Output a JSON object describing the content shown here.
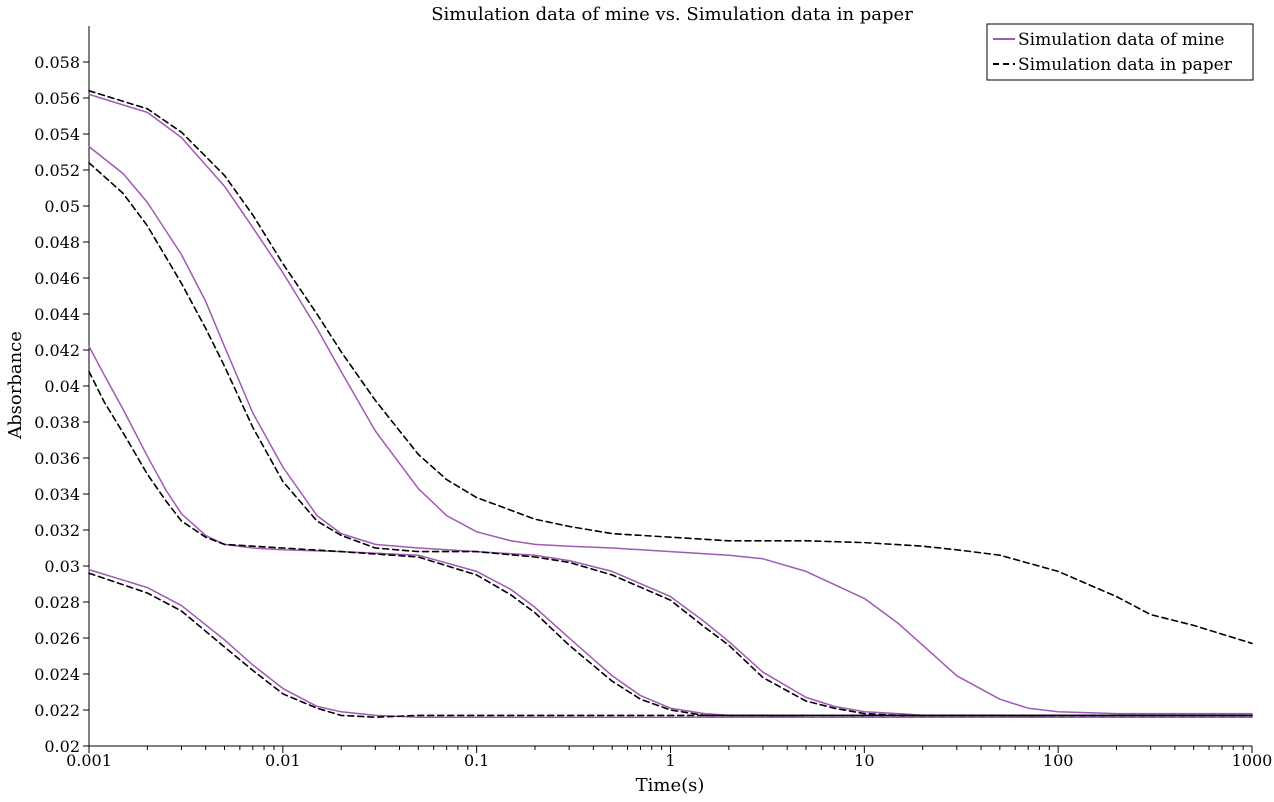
{
  "chart_data": {
    "type": "line",
    "title": "Simulation data of mine vs. Simulation data in paper",
    "xlabel": "Time(s)",
    "ylabel": "Absorbance",
    "x_scale": "log",
    "xlim": [
      0.001,
      1000
    ],
    "ylim": [
      0.02,
      0.06
    ],
    "x_ticks": [
      0.001,
      0.01,
      0.1,
      1,
      10,
      100,
      1000
    ],
    "x_tick_labels": [
      "0.001",
      "0.01",
      "0.1",
      "1",
      "10",
      "100",
      "1000"
    ],
    "y_ticks": [
      0.02,
      0.022,
      0.024,
      0.026,
      0.028,
      0.03,
      0.032,
      0.034,
      0.036,
      0.038,
      0.04,
      0.042,
      0.044,
      0.046,
      0.048,
      0.05,
      0.052,
      0.054,
      0.056,
      0.058
    ],
    "y_tick_labels": [
      "0.02",
      "0.022",
      "0.024",
      "0.026",
      "0.028",
      "0.03",
      "0.032",
      "0.034",
      "0.036",
      "0.038",
      "0.04",
      "0.042",
      "0.044",
      "0.046",
      "0.048",
      "0.05",
      "0.052",
      "0.054",
      "0.056",
      "0.058"
    ],
    "grid": false,
    "legend": {
      "position": "top-right",
      "entries": [
        "Simulation data of mine",
        "Simulation data in paper"
      ]
    },
    "styles": {
      "mine": {
        "color": "#a05ab4",
        "dash": "solid"
      },
      "paper": {
        "color": "#000000",
        "dash": "dashed"
      }
    },
    "series": [
      {
        "group": "mine",
        "x": [
          0.001,
          0.002,
          0.003,
          0.005,
          0.007,
          0.01,
          0.015,
          0.02,
          0.03,
          0.05,
          0.07,
          0.1,
          0.15,
          0.2,
          0.3,
          0.5,
          1,
          2,
          3,
          5,
          10,
          15,
          20,
          30,
          50,
          70,
          100,
          200,
          500,
          1000
        ],
        "y": [
          0.0562,
          0.0552,
          0.0538,
          0.0511,
          0.0488,
          0.0463,
          0.0432,
          0.0408,
          0.0375,
          0.0343,
          0.0328,
          0.0319,
          0.0314,
          0.0312,
          0.0311,
          0.031,
          0.0308,
          0.0306,
          0.0304,
          0.0297,
          0.0282,
          0.0268,
          0.0256,
          0.0239,
          0.0226,
          0.0221,
          0.0219,
          0.0218,
          0.0218,
          0.0218
        ]
      },
      {
        "group": "paper",
        "x": [
          0.001,
          0.002,
          0.003,
          0.005,
          0.007,
          0.01,
          0.015,
          0.02,
          0.03,
          0.05,
          0.07,
          0.1,
          0.15,
          0.2,
          0.3,
          0.5,
          1,
          2,
          3,
          5,
          10,
          20,
          30,
          50,
          100,
          200,
          300,
          500,
          1000
        ],
        "y": [
          0.0564,
          0.0554,
          0.0541,
          0.0517,
          0.0495,
          0.0468,
          0.044,
          0.0419,
          0.0392,
          0.0362,
          0.0348,
          0.0338,
          0.0331,
          0.0326,
          0.0322,
          0.0318,
          0.0316,
          0.0314,
          0.0314,
          0.0314,
          0.0313,
          0.0311,
          0.0309,
          0.0306,
          0.0297,
          0.0283,
          0.0273,
          0.0267,
          0.0257
        ]
      },
      {
        "group": "mine",
        "x": [
          0.001,
          0.0015,
          0.002,
          0.003,
          0.004,
          0.005,
          0.007,
          0.01,
          0.015,
          0.02,
          0.03,
          0.05,
          0.1,
          0.2,
          0.3,
          0.5,
          1,
          1.5,
          2,
          3,
          5,
          7,
          10,
          15,
          20,
          50,
          100,
          1000
        ],
        "y": [
          0.0533,
          0.0518,
          0.0502,
          0.0473,
          0.0447,
          0.0422,
          0.0385,
          0.0355,
          0.0328,
          0.0318,
          0.0312,
          0.031,
          0.0308,
          0.0306,
          0.0303,
          0.0297,
          0.0283,
          0.0269,
          0.0258,
          0.0241,
          0.0227,
          0.0222,
          0.0219,
          0.0218,
          0.0217,
          0.0217,
          0.0216,
          0.0216
        ]
      },
      {
        "group": "paper",
        "x": [
          0.001,
          0.0015,
          0.002,
          0.003,
          0.004,
          0.005,
          0.007,
          0.01,
          0.015,
          0.02,
          0.03,
          0.05,
          0.1,
          0.2,
          0.3,
          0.5,
          1,
          1.5,
          2,
          3,
          5,
          7,
          10,
          15,
          20,
          50,
          100,
          1000
        ],
        "y": [
          0.0524,
          0.0507,
          0.0489,
          0.0457,
          0.0432,
          0.0411,
          0.0377,
          0.0347,
          0.0325,
          0.0317,
          0.031,
          0.0308,
          0.0308,
          0.0305,
          0.0302,
          0.0295,
          0.0281,
          0.0266,
          0.0256,
          0.0238,
          0.0225,
          0.0221,
          0.0218,
          0.0217,
          0.0217,
          0.0217,
          0.0217,
          0.0217
        ]
      },
      {
        "group": "mine",
        "x": [
          0.001,
          0.0012,
          0.0015,
          0.002,
          0.0025,
          0.003,
          0.004,
          0.005,
          0.007,
          0.01,
          0.02,
          0.05,
          0.1,
          0.15,
          0.2,
          0.3,
          0.5,
          0.7,
          1,
          1.5,
          2,
          3,
          5,
          10,
          100,
          1000
        ],
        "y": [
          0.0422,
          0.0406,
          0.0387,
          0.0361,
          0.0342,
          0.0329,
          0.0317,
          0.0312,
          0.031,
          0.0309,
          0.0308,
          0.0306,
          0.0297,
          0.0287,
          0.0277,
          0.026,
          0.0239,
          0.0228,
          0.0221,
          0.0218,
          0.0217,
          0.0217,
          0.0216,
          0.0216,
          0.0216,
          0.0216
        ]
      },
      {
        "group": "paper",
        "x": [
          0.001,
          0.0012,
          0.0015,
          0.002,
          0.0025,
          0.003,
          0.004,
          0.005,
          0.007,
          0.01,
          0.02,
          0.05,
          0.1,
          0.15,
          0.2,
          0.3,
          0.5,
          0.7,
          1,
          1.5,
          2,
          3,
          5,
          10,
          100,
          1000
        ],
        "y": [
          0.0408,
          0.0391,
          0.0374,
          0.0351,
          0.0336,
          0.0325,
          0.0316,
          0.0312,
          0.0311,
          0.031,
          0.0308,
          0.0305,
          0.0295,
          0.0284,
          0.0274,
          0.0256,
          0.0236,
          0.0226,
          0.022,
          0.0217,
          0.0217,
          0.0217,
          0.0217,
          0.0217,
          0.0217,
          0.0217
        ]
      },
      {
        "group": "mine",
        "x": [
          0.001,
          0.002,
          0.003,
          0.005,
          0.007,
          0.01,
          0.015,
          0.02,
          0.03,
          0.05,
          0.1,
          1,
          10,
          100,
          1000
        ],
        "y": [
          0.0298,
          0.0288,
          0.0278,
          0.0259,
          0.0245,
          0.0232,
          0.0222,
          0.0219,
          0.0217,
          0.0216,
          0.0216,
          0.0216,
          0.0216,
          0.0216,
          0.0216
        ]
      },
      {
        "group": "paper",
        "x": [
          0.001,
          0.002,
          0.003,
          0.005,
          0.007,
          0.01,
          0.015,
          0.02,
          0.03,
          0.05,
          0.1,
          1,
          10,
          100,
          1000
        ],
        "y": [
          0.0296,
          0.0285,
          0.0275,
          0.0255,
          0.0242,
          0.0229,
          0.0221,
          0.0217,
          0.0216,
          0.0217,
          0.0217,
          0.0217,
          0.0217,
          0.0217,
          0.0217
        ]
      }
    ]
  }
}
